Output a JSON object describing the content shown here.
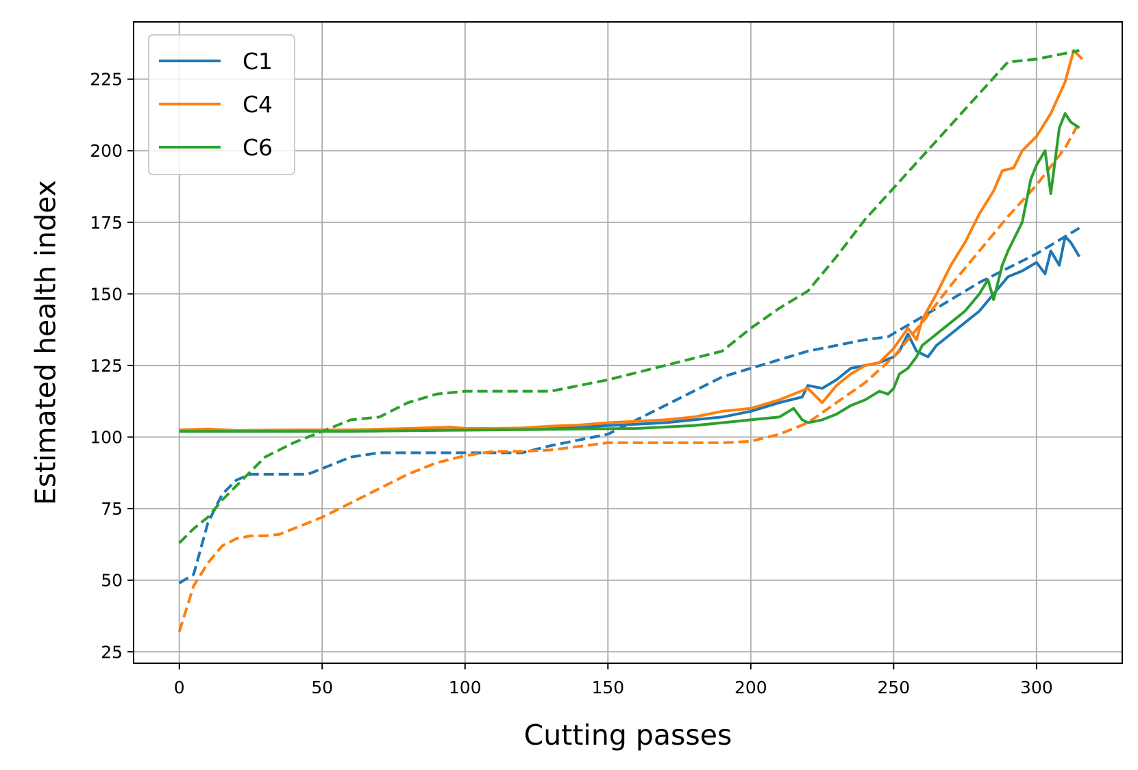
{
  "chart_data": {
    "type": "line",
    "title": "",
    "xlabel": "Cutting passes",
    "ylabel": "Estimated health index",
    "xlim": [
      -16,
      330
    ],
    "ylim": [
      21,
      245
    ],
    "xticks": [
      0,
      50,
      100,
      150,
      200,
      250,
      300
    ],
    "yticks": [
      25,
      50,
      75,
      100,
      125,
      150,
      175,
      200,
      225
    ],
    "grid": true,
    "legend": {
      "position": "top-left",
      "entries": [
        "C1",
        "C4",
        "C6"
      ]
    },
    "colors": {
      "C1": "#1f77b4",
      "C4": "#ff7f0e",
      "C6": "#2ca02c"
    },
    "series": [
      {
        "name": "C1",
        "style": "solid",
        "color": "#1f77b4",
        "x": [
          0,
          20,
          40,
          60,
          80,
          100,
          120,
          140,
          150,
          160,
          170,
          180,
          190,
          200,
          210,
          218,
          220,
          225,
          230,
          235,
          240,
          245,
          250,
          252,
          255,
          258,
          262,
          265,
          270,
          275,
          280,
          285,
          290,
          295,
          300,
          303,
          305,
          308,
          310,
          312,
          315
        ],
        "y": [
          102,
          102,
          102,
          102,
          102.3,
          102.5,
          103,
          103.5,
          104,
          104.5,
          105,
          106,
          107,
          109,
          112,
          114,
          118,
          117,
          120,
          124,
          125,
          126,
          128,
          130,
          136,
          130,
          128,
          132,
          136,
          140,
          144,
          150,
          156,
          158,
          161,
          157,
          165,
          160,
          170,
          168,
          163
        ]
      },
      {
        "name": "C1",
        "style": "dashed",
        "color": "#1f77b4",
        "x": [
          0,
          5,
          10,
          15,
          20,
          25,
          30,
          35,
          40,
          45,
          50,
          55,
          60,
          70,
          80,
          100,
          120,
          130,
          140,
          150,
          160,
          170,
          180,
          190,
          200,
          210,
          220,
          230,
          240,
          248,
          260,
          270,
          280,
          290,
          300,
          310,
          315
        ],
        "y": [
          49,
          52,
          70,
          80,
          85,
          87,
          87,
          87,
          87,
          87,
          89,
          91,
          93,
          94.5,
          94.5,
          94.5,
          94.5,
          97,
          99,
          101,
          106,
          111,
          116,
          121,
          124,
          127,
          130,
          132,
          134,
          135,
          142,
          148,
          154,
          159,
          164,
          170,
          173
        ]
      },
      {
        "name": "C4",
        "style": "solid",
        "color": "#ff7f0e",
        "x": [
          0,
          10,
          20,
          40,
          60,
          80,
          95,
          100,
          110,
          120,
          130,
          140,
          150,
          160,
          170,
          180,
          190,
          200,
          210,
          220,
          225,
          230,
          235,
          240,
          245,
          250,
          255,
          258,
          260,
          265,
          270,
          275,
          280,
          285,
          288,
          292,
          295,
          300,
          305,
          310,
          313,
          316
        ],
        "y": [
          102.5,
          102.8,
          102.3,
          102.5,
          102.5,
          103,
          103.5,
          103,
          103,
          103.2,
          103.8,
          104.2,
          105,
          105.5,
          106,
          107,
          109,
          110,
          113,
          117,
          112,
          118,
          122,
          125,
          126,
          131,
          138,
          134,
          141,
          150,
          160,
          168,
          178,
          186,
          193,
          194,
          200,
          205,
          213,
          224,
          235,
          232
        ]
      },
      {
        "name": "C4",
        "style": "dashed",
        "color": "#ff7f0e",
        "x": [
          0,
          5,
          10,
          15,
          20,
          25,
          30,
          35,
          40,
          50,
          60,
          70,
          80,
          90,
          100,
          110,
          120,
          130,
          150,
          170,
          190,
          200,
          210,
          220,
          230,
          240,
          250,
          260,
          270,
          280,
          290,
          300,
          310,
          315
        ],
        "y": [
          32,
          48,
          56,
          62,
          64.5,
          65.5,
          65.5,
          66,
          68,
          72,
          77,
          82,
          87,
          91,
          93.5,
          95,
          95,
          95.5,
          98,
          98,
          98,
          98.5,
          101,
          105,
          112,
          119,
          128,
          140,
          153,
          165,
          177,
          188,
          201,
          210
        ]
      },
      {
        "name": "C6",
        "style": "solid",
        "color": "#2ca02c",
        "x": [
          0,
          20,
          40,
          60,
          80,
          100,
          120,
          140,
          160,
          180,
          190,
          200,
          210,
          215,
          218,
          220,
          225,
          230,
          235,
          240,
          245,
          248,
          250,
          252,
          255,
          258,
          260,
          265,
          270,
          275,
          280,
          283,
          285,
          288,
          290,
          295,
          298,
          300,
          303,
          305,
          308,
          310,
          312,
          315
        ],
        "y": [
          102,
          102,
          102,
          102,
          102.2,
          102.4,
          102.6,
          102.8,
          103,
          104,
          105,
          106,
          107,
          110,
          106,
          105,
          106,
          108,
          111,
          113,
          116,
          115,
          117,
          122,
          124,
          128,
          132,
          136,
          140,
          144,
          150,
          155,
          148,
          160,
          165,
          175,
          190,
          195,
          200,
          185,
          208,
          213,
          210,
          208
        ]
      },
      {
        "name": "C6",
        "style": "dashed",
        "color": "#2ca02c",
        "x": [
          0,
          5,
          10,
          15,
          20,
          25,
          30,
          40,
          50,
          60,
          70,
          80,
          90,
          100,
          110,
          120,
          130,
          150,
          170,
          190,
          200,
          210,
          220,
          230,
          240,
          250,
          260,
          270,
          280,
          290,
          300,
          310,
          315
        ],
        "y": [
          63,
          68,
          72,
          78,
          83,
          88,
          93,
          98,
          102,
          106,
          107,
          112,
          115,
          116,
          116,
          116,
          116,
          120,
          125,
          130,
          138,
          145,
          151,
          163,
          176,
          187,
          198,
          209,
          220,
          231,
          232,
          234,
          235
        ]
      }
    ]
  }
}
